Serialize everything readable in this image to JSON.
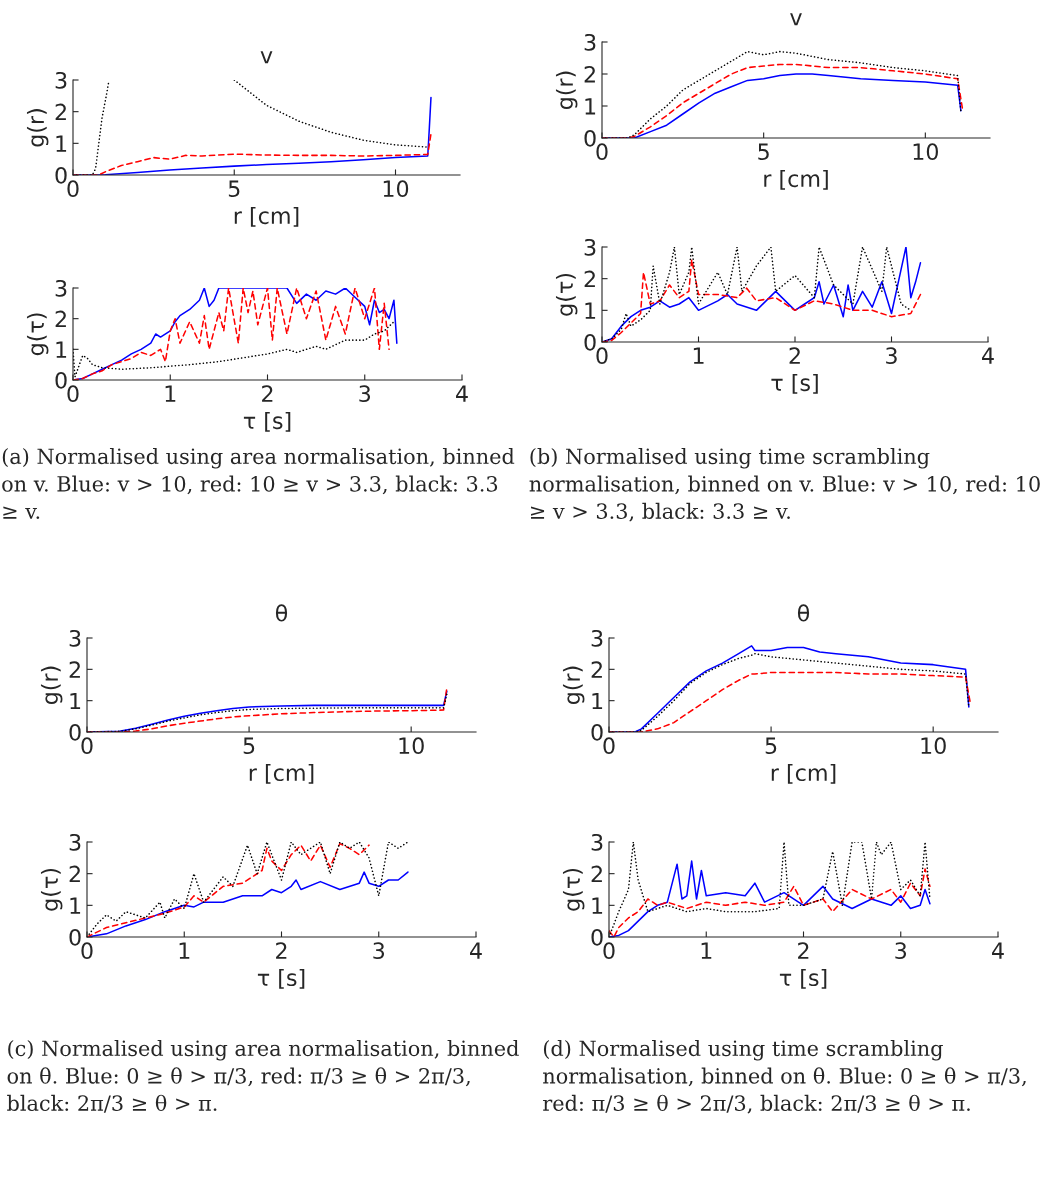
{
  "chart_data": [
    {
      "type": "line",
      "title": "v",
      "xlabel": "r [cm]",
      "ylabel": "g(r)",
      "xlim": [
        0,
        12
      ],
      "xticks": [
        0,
        5,
        10
      ],
      "ylim": [
        0,
        3
      ],
      "yticks": [
        0,
        1,
        2,
        3
      ],
      "series": [
        {
          "color": "#0000ff",
          "line_style": "solid",
          "x": [
            0,
            1,
            2,
            3,
            4,
            5,
            6,
            7,
            8,
            9,
            10,
            11,
            11.05,
            11.1
          ],
          "values": [
            0,
            0.01,
            0.08,
            0.16,
            0.22,
            0.28,
            0.33,
            0.37,
            0.42,
            0.48,
            0.55,
            0.6,
            1.5,
            2.45
          ]
        },
        {
          "color": "#ff0000",
          "line_style": "dashed",
          "x": [
            0,
            0.8,
            1,
            1.5,
            2,
            2.5,
            3,
            3.5,
            4,
            5,
            6,
            7,
            8,
            9,
            10,
            11,
            11.1
          ],
          "values": [
            0,
            0,
            0.1,
            0.3,
            0.42,
            0.55,
            0.5,
            0.62,
            0.6,
            0.66,
            0.63,
            0.62,
            0.62,
            0.6,
            0.62,
            0.65,
            1.3
          ]
        },
        {
          "color": "#000000",
          "line_style": "dotted",
          "x": [
            0,
            0.6,
            0.7,
            0.8,
            0.9,
            1.05,
            1.1,
            3,
            5,
            6,
            7,
            8,
            9,
            10,
            11
          ],
          "values": [
            0,
            0,
            0.2,
            1.0,
            1.8,
            2.6,
            2.9,
            null,
            3.0,
            2.2,
            1.7,
            1.35,
            1.1,
            0.95,
            0.88
          ]
        }
      ]
    },
    {
      "type": "line",
      "xlabel": "τ [s]",
      "ylabel": "g(τ)",
      "xlim": [
        0,
        4
      ],
      "xticks": [
        0,
        1,
        2,
        3,
        4
      ],
      "ylim": [
        0,
        3
      ],
      "yticks": [
        0,
        1,
        2,
        3
      ],
      "annotations": [
        "(a) Normalised using area normalisation, binned on v. Blue: v > 10, red: 10 ≥ v > 3.3, black: 3.3 ≥ v."
      ],
      "series": [
        {
          "color": "#0000ff",
          "line_style": "solid",
          "x": [
            0,
            0.1,
            0.2,
            0.3,
            0.4,
            0.5,
            0.6,
            0.7,
            0.8,
            0.85,
            0.9,
            1.0,
            1.05,
            1.1,
            1.2,
            1.3,
            1.35,
            1.4,
            1.45,
            1.5,
            1.6,
            1.7,
            1.8,
            1.9,
            2.0,
            2.1,
            2.2,
            2.3,
            2.4,
            2.5,
            2.6,
            2.7,
            2.8,
            2.9,
            3.0,
            3.05,
            3.1,
            3.15,
            3.2,
            3.25,
            3.3,
            3.33
          ],
          "values": [
            0,
            0.05,
            0.2,
            0.35,
            0.5,
            0.65,
            0.85,
            1.0,
            1.2,
            1.5,
            1.4,
            1.6,
            1.9,
            2.1,
            2.3,
            2.6,
            3.0,
            2.4,
            2.6,
            3.0,
            3.0,
            3.0,
            3.0,
            3.0,
            3.0,
            3.0,
            3.0,
            2.5,
            2.8,
            2.6,
            2.9,
            2.8,
            3.0,
            2.7,
            2.4,
            1.8,
            2.6,
            2.2,
            2.3,
            2.0,
            2.6,
            1.2
          ]
        },
        {
          "color": "#ff0000",
          "line_style": "dashed",
          "x": [
            0,
            0.1,
            0.2,
            0.3,
            0.4,
            0.5,
            0.6,
            0.7,
            0.8,
            0.9,
            0.95,
            1.0,
            1.05,
            1.1,
            1.2,
            1.3,
            1.35,
            1.4,
            1.5,
            1.55,
            1.6,
            1.7,
            1.75,
            1.8,
            1.85,
            1.9,
            2.0,
            2.05,
            2.1,
            2.2,
            2.3,
            2.4,
            2.5,
            2.6,
            2.7,
            2.8,
            2.9,
            3.0,
            3.1,
            3.15,
            3.2,
            3.25
          ],
          "values": [
            0,
            0.05,
            0.2,
            0.3,
            0.5,
            0.6,
            0.7,
            0.9,
            0.8,
            1.0,
            0.6,
            1.6,
            2.0,
            1.2,
            1.9,
            1.2,
            2.1,
            1.0,
            2.2,
            1.6,
            3.0,
            1.2,
            3.0,
            2.2,
            2.9,
            1.8,
            3.0,
            1.3,
            3.0,
            1.5,
            3.0,
            2.0,
            2.9,
            1.3,
            2.4,
            1.5,
            3.0,
            2.0,
            3.0,
            1.0,
            2.5,
            1.0
          ]
        },
        {
          "color": "#000000",
          "line_style": "dotted",
          "x": [
            0,
            0.02,
            0.1,
            0.15,
            0.2,
            0.3,
            0.5,
            0.8,
            1.0,
            1.2,
            1.5,
            1.7,
            2.0,
            2.2,
            2.3,
            2.5,
            2.6,
            2.8,
            3.0,
            3.1,
            3.2,
            3.3
          ],
          "values": [
            1.0,
            0.1,
            0.8,
            0.7,
            0.5,
            0.4,
            0.35,
            0.4,
            0.45,
            0.5,
            0.6,
            0.7,
            0.85,
            1.0,
            0.9,
            1.1,
            1.0,
            1.3,
            1.3,
            1.5,
            1.6,
            1.9
          ]
        }
      ]
    },
    {
      "type": "line",
      "title": "v",
      "xlabel": "r [cm]",
      "ylabel": "g(r)",
      "xlim": [
        0,
        12
      ],
      "xticks": [
        0,
        5,
        10
      ],
      "ylim": [
        0,
        3
      ],
      "yticks": [
        0,
        1,
        2,
        3
      ],
      "series": [
        {
          "color": "#000000",
          "line_style": "dotted",
          "x": [
            0,
            0.8,
            1,
            1.5,
            2,
            2.5,
            3,
            3.5,
            4,
            4.5,
            5,
            5.5,
            6,
            6.5,
            7,
            8,
            9,
            10,
            11,
            11.1
          ],
          "values": [
            0,
            0,
            0.1,
            0.6,
            1.0,
            1.5,
            1.8,
            2.1,
            2.4,
            2.7,
            2.6,
            2.7,
            2.65,
            2.55,
            2.45,
            2.35,
            2.2,
            2.1,
            1.95,
            0.8
          ]
        },
        {
          "color": "#ff0000",
          "line_style": "dashed",
          "x": [
            0,
            0.8,
            1,
            1.5,
            2,
            2.5,
            3,
            3.5,
            4,
            4.5,
            5,
            5.5,
            6,
            6.5,
            7,
            8,
            9,
            10,
            11,
            11.15
          ],
          "values": [
            0,
            0,
            0.05,
            0.35,
            0.7,
            1.1,
            1.4,
            1.7,
            2.0,
            2.2,
            2.25,
            2.3,
            2.3,
            2.25,
            2.2,
            2.2,
            2.1,
            2.0,
            1.85,
            0.9
          ]
        },
        {
          "color": "#0000ff",
          "line_style": "solid",
          "x": [
            0,
            1,
            1.5,
            2,
            2.5,
            3,
            3.5,
            4,
            4.5,
            5,
            5.5,
            6,
            6.5,
            7,
            8,
            9,
            10,
            11,
            11.1
          ],
          "values": [
            0,
            0,
            0.2,
            0.4,
            0.75,
            1.1,
            1.4,
            1.6,
            1.8,
            1.85,
            1.95,
            2.0,
            2.0,
            1.95,
            1.85,
            1.8,
            1.75,
            1.65,
            0.85
          ]
        }
      ]
    },
    {
      "type": "line",
      "xlabel": "τ [s]",
      "ylabel": "g(τ)",
      "xlim": [
        0,
        4
      ],
      "xticks": [
        0,
        1,
        2,
        3,
        4
      ],
      "ylim": [
        0,
        3
      ],
      "yticks": [
        0,
        1,
        2,
        3
      ],
      "annotations": [
        "(b) Normalised using time scrambling normalisation, binned on v. Blue: v > 10, red: 10 ≥ v > 3.3, black: 3.3 ≥ v."
      ],
      "series": [
        {
          "color": "#000000",
          "line_style": "dotted",
          "x": [
            0,
            0.1,
            0.2,
            0.25,
            0.3,
            0.4,
            0.5,
            0.53,
            0.6,
            0.7,
            0.75,
            0.8,
            0.9,
            0.93,
            1.0,
            1.2,
            1.3,
            1.4,
            1.45,
            1.6,
            1.75,
            1.8,
            2.0,
            2.2,
            2.25,
            2.4,
            2.6,
            2.7,
            2.9,
            2.95,
            3.1,
            3.2
          ],
          "values": [
            0,
            0.1,
            0.4,
            0.9,
            0.5,
            0.7,
            1.0,
            2.4,
            1.2,
            2.2,
            3.0,
            1.5,
            2.2,
            3.0,
            1.2,
            2.2,
            1.5,
            3.0,
            1.6,
            2.4,
            3.0,
            1.6,
            2.1,
            1.4,
            3.0,
            1.8,
            1.2,
            3.0,
            1.6,
            3.0,
            1.2,
            1.0
          ]
        },
        {
          "color": "#ff0000",
          "line_style": "dashed",
          "x": [
            0,
            0.1,
            0.2,
            0.3,
            0.4,
            0.43,
            0.5,
            0.6,
            0.7,
            0.8,
            0.9,
            0.93,
            1.0,
            1.2,
            1.4,
            1.5,
            1.6,
            1.8,
            2.0,
            2.2,
            2.4,
            2.6,
            2.8,
            3.0,
            3.2,
            3.3
          ],
          "values": [
            0,
            0.05,
            0.3,
            0.6,
            0.9,
            2.2,
            1.2,
            1.3,
            1.8,
            1.4,
            1.6,
            2.6,
            1.5,
            1.5,
            1.4,
            1.7,
            1.3,
            1.4,
            1.0,
            1.3,
            1.2,
            1.0,
            1.0,
            0.8,
            0.9,
            1.5
          ]
        },
        {
          "color": "#0000ff",
          "line_style": "solid",
          "x": [
            0,
            0.1,
            0.2,
            0.3,
            0.4,
            0.5,
            0.6,
            0.7,
            0.8,
            0.9,
            1.0,
            1.2,
            1.3,
            1.4,
            1.6,
            1.8,
            1.9,
            2.0,
            2.1,
            2.2,
            2.25,
            2.3,
            2.4,
            2.5,
            2.55,
            2.6,
            2.7,
            2.8,
            2.9,
            3.0,
            3.1,
            3.15,
            3.2,
            3.25,
            3.3
          ],
          "values": [
            0,
            0.1,
            0.5,
            0.8,
            1.0,
            1.1,
            1.3,
            1.1,
            1.2,
            1.4,
            1.0,
            1.3,
            1.5,
            1.2,
            1.0,
            1.6,
            1.3,
            1.0,
            1.2,
            1.4,
            1.9,
            1.2,
            1.8,
            0.8,
            1.8,
            1.0,
            1.6,
            1.1,
            1.9,
            0.9,
            2.3,
            3.0,
            1.4,
            1.9,
            2.5
          ]
        }
      ]
    },
    {
      "type": "line",
      "title": "θ",
      "xlabel": "r [cm]",
      "ylabel": "g(r)",
      "xlim": [
        0,
        12
      ],
      "xticks": [
        0,
        5,
        10
      ],
      "ylim": [
        0,
        3
      ],
      "yticks": [
        0,
        1,
        2,
        3
      ],
      "series": [
        {
          "color": "#000000",
          "line_style": "dotted",
          "x": [
            0,
            1,
            1.5,
            2,
            2.5,
            3,
            3.5,
            4,
            4.5,
            5,
            6,
            7,
            8,
            9,
            10,
            11,
            11.1
          ],
          "values": [
            0,
            0.02,
            0.1,
            0.22,
            0.35,
            0.45,
            0.55,
            0.62,
            0.68,
            0.72,
            0.75,
            0.76,
            0.77,
            0.77,
            0.77,
            0.77,
            1.2
          ]
        },
        {
          "color": "#ff0000",
          "line_style": "dashed",
          "x": [
            0,
            1,
            1.5,
            2,
            2.5,
            3,
            3.5,
            4,
            4.5,
            5,
            6,
            7,
            8,
            9,
            10,
            11,
            11.1
          ],
          "values": [
            0,
            0,
            0.03,
            0.1,
            0.2,
            0.28,
            0.35,
            0.42,
            0.48,
            0.52,
            0.58,
            0.62,
            0.65,
            0.67,
            0.68,
            0.7,
            1.4
          ]
        },
        {
          "color": "#0000ff",
          "line_style": "solid",
          "x": [
            0,
            1,
            1.5,
            2,
            2.5,
            3,
            3.5,
            4,
            4.5,
            5,
            6,
            7,
            8,
            9,
            10,
            11,
            11.1
          ],
          "values": [
            0,
            0.02,
            0.12,
            0.25,
            0.38,
            0.5,
            0.6,
            0.68,
            0.75,
            0.8,
            0.83,
            0.85,
            0.85,
            0.85,
            0.85,
            0.85,
            1.3
          ]
        }
      ]
    },
    {
      "type": "line",
      "xlabel": "τ [s]",
      "ylabel": "g(τ)",
      "xlim": [
        0,
        4
      ],
      "xticks": [
        0,
        1,
        2,
        3,
        4
      ],
      "ylim": [
        0,
        3
      ],
      "yticks": [
        0,
        1,
        2,
        3
      ],
      "annotations": [
        "(c) Normalised using area normalisation, binned on θ. Blue: 0 ≥ θ > π/3, red: π/3 ≥ θ > 2π/3, black: 2π/3 ≥ θ > π."
      ],
      "series": [
        {
          "color": "#000000",
          "line_style": "dotted",
          "x": [
            0,
            0.1,
            0.2,
            0.3,
            0.4,
            0.6,
            0.75,
            0.8,
            0.9,
            1.0,
            1.1,
            1.2,
            1.4,
            1.5,
            1.65,
            1.75,
            1.85,
            2.0,
            2.1,
            2.2,
            2.4,
            2.5,
            2.6,
            2.7,
            2.8,
            2.9,
            3.0,
            3.1,
            3.2,
            3.3
          ],
          "values": [
            0,
            0.4,
            0.7,
            0.5,
            0.8,
            0.6,
            1.1,
            0.6,
            1.2,
            0.9,
            2.0,
            1.1,
            1.9,
            1.6,
            2.9,
            2.0,
            3.0,
            1.8,
            3.0,
            2.6,
            3.0,
            2.0,
            3.0,
            2.8,
            3.0,
            2.5,
            1.3,
            3.0,
            2.8,
            3.0
          ]
        },
        {
          "color": "#ff0000",
          "line_style": "dashed",
          "x": [
            0,
            0.2,
            0.4,
            0.6,
            0.8,
            1.0,
            1.1,
            1.2,
            1.4,
            1.6,
            1.8,
            1.85,
            1.9,
            2.0,
            2.1,
            2.2,
            2.3,
            2.4,
            2.5,
            2.6,
            2.7,
            2.8,
            2.9
          ],
          "values": [
            0,
            0.3,
            0.45,
            0.6,
            0.75,
            0.95,
            1.3,
            1.1,
            1.6,
            1.7,
            2.1,
            2.8,
            2.4,
            2.1,
            2.6,
            2.9,
            2.4,
            2.9,
            2.2,
            2.95,
            2.8,
            2.6,
            2.9
          ]
        },
        {
          "color": "#0000ff",
          "line_style": "solid",
          "x": [
            0,
            0.2,
            0.4,
            0.6,
            0.8,
            1.0,
            1.1,
            1.2,
            1.4,
            1.6,
            1.8,
            1.9,
            2.0,
            2.1,
            2.15,
            2.2,
            2.4,
            2.6,
            2.8,
            2.85,
            2.9,
            3.0,
            3.1,
            3.2,
            3.3
          ],
          "values": [
            0,
            0.1,
            0.35,
            0.55,
            0.8,
            1.0,
            0.95,
            1.1,
            1.1,
            1.3,
            1.3,
            1.5,
            1.4,
            1.6,
            1.8,
            1.5,
            1.75,
            1.5,
            1.7,
            2.05,
            1.7,
            1.6,
            1.8,
            1.8,
            2.05
          ]
        }
      ]
    },
    {
      "type": "line",
      "title": "θ",
      "xlabel": "r [cm]",
      "ylabel": "g(r)",
      "xlim": [
        0,
        12
      ],
      "xticks": [
        0,
        5,
        10
      ],
      "ylim": [
        0,
        3
      ],
      "yticks": [
        0,
        1,
        2,
        3
      ],
      "series": [
        {
          "color": "#000000",
          "line_style": "dotted",
          "x": [
            0,
            0.8,
            1,
            1.5,
            2,
            2.5,
            3,
            3.5,
            4,
            4.4,
            4.5,
            5,
            5.5,
            6,
            6.5,
            7,
            8,
            9,
            10,
            11,
            11.1
          ],
          "values": [
            0,
            0,
            0.05,
            0.5,
            1.0,
            1.55,
            1.9,
            2.15,
            2.35,
            2.45,
            2.5,
            2.4,
            2.35,
            2.3,
            2.25,
            2.2,
            2.1,
            2.0,
            1.95,
            1.85,
            0.8
          ]
        },
        {
          "color": "#ff0000",
          "line_style": "dashed",
          "x": [
            0,
            0.8,
            1,
            1.5,
            2,
            2.5,
            3,
            3.5,
            4,
            4.4,
            4.5,
            5,
            5.5,
            6,
            6.5,
            7,
            8,
            9,
            10,
            11,
            11.15
          ],
          "values": [
            0,
            0,
            0,
            0.1,
            0.3,
            0.65,
            1.0,
            1.35,
            1.65,
            1.85,
            1.85,
            1.9,
            1.9,
            1.9,
            1.9,
            1.9,
            1.85,
            1.85,
            1.8,
            1.75,
            0.9
          ]
        },
        {
          "color": "#0000ff",
          "line_style": "solid",
          "x": [
            0,
            0.8,
            1,
            1.5,
            2,
            2.5,
            3,
            3.5,
            4,
            4.4,
            4.5,
            5,
            5.5,
            6,
            6.5,
            7,
            8,
            9,
            10,
            11,
            11.1
          ],
          "values": [
            0,
            0,
            0.1,
            0.6,
            1.1,
            1.6,
            1.95,
            2.2,
            2.5,
            2.75,
            2.6,
            2.6,
            2.7,
            2.7,
            2.55,
            2.5,
            2.4,
            2.2,
            2.15,
            2.0,
            0.8
          ]
        }
      ]
    },
    {
      "type": "line",
      "xlabel": "τ [s]",
      "ylabel": "g(τ)",
      "xlim": [
        0,
        4
      ],
      "xticks": [
        0,
        1,
        2,
        3,
        4
      ],
      "ylim": [
        0,
        3
      ],
      "yticks": [
        0,
        1,
        2,
        3
      ],
      "annotations": [
        "(d) Normalised using time scrambling normalisation, binned on θ. Blue: 0 ≥ θ > π/3, red: π/3 ≥ θ > 2π/3, black: 2π/3 ≥ θ > π."
      ],
      "series": [
        {
          "color": "#000000",
          "line_style": "dotted",
          "x": [
            0,
            0.1,
            0.2,
            0.25,
            0.3,
            0.4,
            0.6,
            0.8,
            1.0,
            1.2,
            1.5,
            1.75,
            1.8,
            1.85,
            2.0,
            2.2,
            2.3,
            2.4,
            2.5,
            2.6,
            2.7,
            2.75,
            2.8,
            2.9,
            3.0,
            3.1,
            3.2,
            3.25,
            3.3
          ],
          "values": [
            0,
            0.8,
            1.5,
            3.0,
            1.8,
            0.8,
            1.0,
            0.8,
            0.9,
            0.8,
            0.8,
            0.9,
            3.0,
            1.0,
            1.0,
            1.2,
            2.7,
            1.0,
            3.0,
            3.0,
            1.2,
            3.0,
            2.6,
            3.0,
            1.5,
            1.8,
            1.3,
            3.0,
            1.2
          ]
        },
        {
          "color": "#ff0000",
          "line_style": "dashed",
          "x": [
            0,
            0.05,
            0.1,
            0.2,
            0.3,
            0.4,
            0.5,
            0.6,
            0.8,
            1.0,
            1.2,
            1.4,
            1.6,
            1.8,
            1.9,
            2.0,
            2.2,
            2.3,
            2.5,
            2.7,
            2.9,
            3.0,
            3.1,
            3.2,
            3.25,
            3.3
          ],
          "values": [
            0.2,
            0,
            0.3,
            0.6,
            0.8,
            1.2,
            1.0,
            1.1,
            0.9,
            1.1,
            1.0,
            1.1,
            1.0,
            1.1,
            1.6,
            1.0,
            1.2,
            0.8,
            1.5,
            1.2,
            1.5,
            1.1,
            1.7,
            1.3,
            2.15,
            1.6
          ]
        },
        {
          "color": "#0000ff",
          "line_style": "solid",
          "x": [
            0,
            0.1,
            0.2,
            0.3,
            0.4,
            0.5,
            0.6,
            0.7,
            0.75,
            0.8,
            0.85,
            0.9,
            0.95,
            1.0,
            1.2,
            1.4,
            1.5,
            1.6,
            1.8,
            2.0,
            2.2,
            2.3,
            2.5,
            2.7,
            2.9,
            3.0,
            3.1,
            3.2,
            3.25,
            3.3
          ],
          "values": [
            0,
            0.05,
            0.2,
            0.5,
            0.8,
            1.0,
            1.1,
            2.3,
            1.2,
            1.3,
            2.4,
            1.2,
            2.1,
            1.3,
            1.4,
            1.3,
            1.7,
            1.1,
            1.4,
            1.0,
            1.6,
            1.2,
            0.9,
            1.2,
            1.0,
            1.3,
            0.9,
            1.0,
            1.5,
            1.05
          ]
        }
      ]
    }
  ]
}
